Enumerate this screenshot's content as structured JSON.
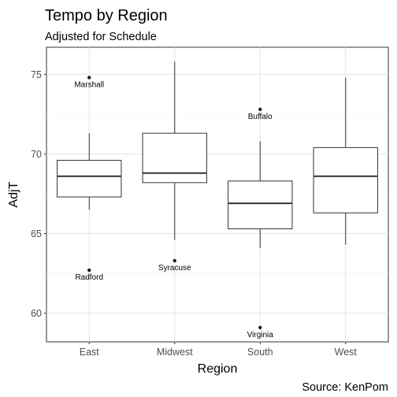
{
  "chart_data": {
    "type": "boxplot",
    "title": "Tempo by Region",
    "subtitle": "Adjusted for Schedule",
    "xlabel": "Region",
    "ylabel": "AdjT",
    "caption": "Source: KenPom",
    "ylim": [
      58.2,
      76.7
    ],
    "yticks": [
      60,
      65,
      70,
      75
    ],
    "grid": true,
    "categories": [
      "East",
      "Midwest",
      "South",
      "West"
    ],
    "boxes": [
      {
        "category": "East",
        "whisker_low": 66.5,
        "q1": 67.3,
        "median": 68.6,
        "q3": 69.6,
        "whisker_high": 71.3,
        "outliers": [
          {
            "value": 74.8,
            "label": "Marshall"
          },
          {
            "value": 62.7,
            "label": "Radford"
          }
        ]
      },
      {
        "category": "Midwest",
        "whisker_low": 64.6,
        "q1": 68.2,
        "median": 68.8,
        "q3": 71.3,
        "whisker_high": 75.8,
        "outliers": [
          {
            "value": 63.3,
            "label": "Syracuse"
          }
        ]
      },
      {
        "category": "South",
        "whisker_low": 64.1,
        "q1": 65.3,
        "median": 66.9,
        "q3": 68.3,
        "whisker_high": 70.8,
        "outliers": [
          {
            "value": 72.8,
            "label": "Buffalo"
          },
          {
            "value": 59.1,
            "label": "Virginia"
          }
        ]
      },
      {
        "category": "West",
        "whisker_low": 64.3,
        "q1": 66.3,
        "median": 68.6,
        "q3": 70.4,
        "whisker_high": 74.8,
        "outliers": []
      }
    ]
  }
}
